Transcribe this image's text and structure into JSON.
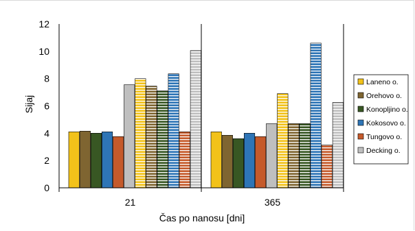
{
  "chart_data": {
    "type": "bar",
    "title": "",
    "xlabel": "Čas po nanosu [dni]",
    "ylabel": "Sijaj",
    "ylim": [
      0,
      12
    ],
    "yticks": [
      0,
      2,
      4,
      6,
      8,
      10,
      12
    ],
    "grid": false,
    "legend_position": "right",
    "categories": [
      "21",
      "365"
    ],
    "groups": [
      {
        "category": "21",
        "bars": [
          {
            "series": "Laneno o.",
            "value": 4.1
          },
          {
            "series": "Orehovo o.",
            "value": 4.15
          },
          {
            "series": "Konopljino o.",
            "value": 4.0
          },
          {
            "series": "Kokosovo o.",
            "value": 4.1
          },
          {
            "series": "Tungovo o.",
            "value": 3.75
          },
          {
            "series": "Decking o.",
            "value": 7.55
          },
          {
            "series": "Laneno o.",
            "value": 8.0,
            "striped": true
          },
          {
            "series": "Orehovo o.",
            "value": 7.45,
            "striped": true
          },
          {
            "series": "Konopljino o.",
            "value": 7.1,
            "striped": true
          },
          {
            "series": "Kokosovo o.",
            "value": 8.35,
            "striped": true
          },
          {
            "series": "Tungovo o.",
            "value": 4.1,
            "striped": true
          },
          {
            "series": "Decking o.",
            "value": 10.05,
            "striped": true
          }
        ]
      },
      {
        "category": "365",
        "bars": [
          {
            "series": "Laneno o.",
            "value": 4.1
          },
          {
            "series": "Orehovo o.",
            "value": 3.85
          },
          {
            "series": "Konopljino o.",
            "value": 3.6
          },
          {
            "series": "Kokosovo o.",
            "value": 4.0
          },
          {
            "series": "Tungovo o.",
            "value": 3.75
          },
          {
            "series": "Decking o.",
            "value": 4.7
          },
          {
            "series": "Laneno o.",
            "value": 6.9,
            "striped": true
          },
          {
            "series": "Orehovo o.",
            "value": 4.7,
            "striped": true
          },
          {
            "series": "Konopljino o.",
            "value": 4.7,
            "striped": true
          },
          {
            "series": "Kokosovo o.",
            "value": 10.6,
            "striped": true
          },
          {
            "series": "Tungovo o.",
            "value": 3.15,
            "striped": true
          },
          {
            "series": "Decking o.",
            "value": 6.25,
            "striped": true
          }
        ]
      }
    ],
    "series": [
      {
        "name": "Laneno o.",
        "color": "#f2c21a"
      },
      {
        "name": "Orehovo o.",
        "color": "#7f6531"
      },
      {
        "name": "Konopljino o.",
        "color": "#385723"
      },
      {
        "name": "Kokosovo o.",
        "color": "#2e75b6"
      },
      {
        "name": "Tungovo o.",
        "color": "#c55a2b"
      },
      {
        "name": "Decking o.",
        "color": "#bfbfbf"
      }
    ]
  }
}
